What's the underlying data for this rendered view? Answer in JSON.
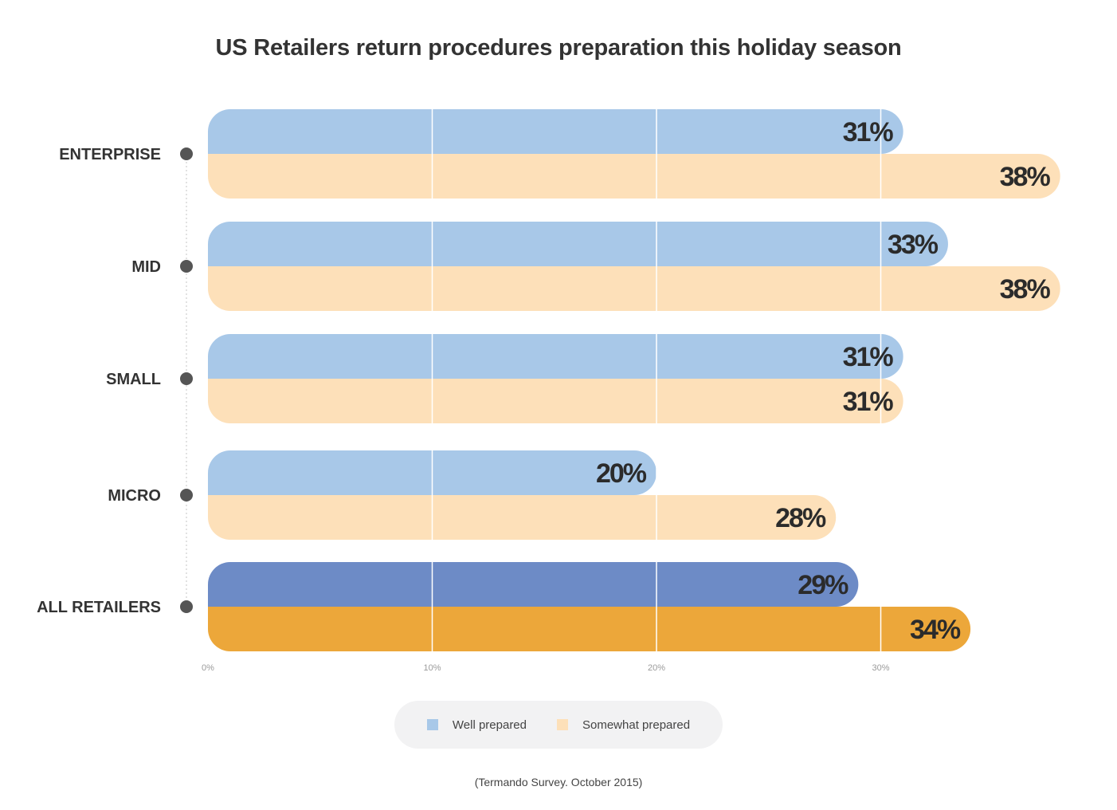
{
  "chart_data": {
    "type": "bar",
    "orientation": "horizontal",
    "title": "US Retailers return procedures preparation this holiday season",
    "categories": [
      "ENTERPRISE",
      "MID",
      "SMALL",
      "MICRO",
      "ALL RETAILERS"
    ],
    "series": [
      {
        "name": "Well prepared",
        "values": [
          31,
          33,
          31,
          20,
          29
        ],
        "labels": [
          "31%",
          "33%",
          "31%",
          "20%",
          "29%"
        ]
      },
      {
        "name": "Somewhat prepared",
        "values": [
          38,
          38,
          31,
          28,
          34
        ],
        "labels": [
          "38%",
          "38%",
          "31%",
          "28%",
          "34%"
        ]
      }
    ],
    "xlabel": "",
    "ylabel": "",
    "xlim": [
      0,
      38
    ],
    "xticks": [
      "0%",
      "10%",
      "20%",
      "30%"
    ],
    "grid": true,
    "legend_position": "bottom-center",
    "colors": {
      "well_prepared": "#a8c8e8",
      "somewhat_prepared": "#fde0b9",
      "well_prepared_total": "#6d8bc6",
      "somewhat_prepared_total": "#eca73a",
      "category_dot": "#555555",
      "gridline": "#ffffff",
      "value_label": "#2b2b2b"
    }
  },
  "legend": {
    "items": [
      {
        "label": "Well prepared",
        "color": "#a8c8e8"
      },
      {
        "label": "Somewhat prepared",
        "color": "#fde0b9"
      }
    ]
  },
  "footer": {
    "source": "(Termando Survey. October 2015)"
  }
}
